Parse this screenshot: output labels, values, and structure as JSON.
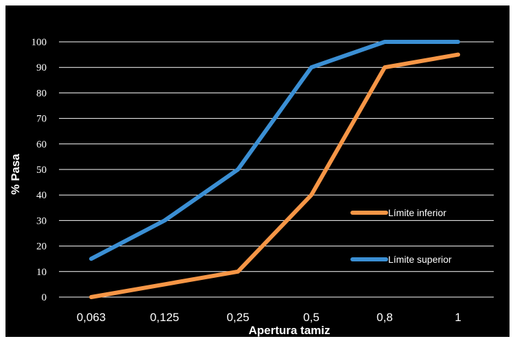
{
  "chart_data": {
    "type": "line",
    "title": "",
    "xlabel": "Apertura tamiz",
    "ylabel": "% Pasa",
    "categories": [
      "0,063",
      "0,125",
      "0,25",
      "0,5",
      "0,8",
      "1"
    ],
    "ylim": [
      0,
      100
    ],
    "yticks": [
      0,
      10,
      20,
      30,
      40,
      50,
      60,
      70,
      80,
      90,
      100
    ],
    "grid": true,
    "legend_position": "right",
    "background": "#000000",
    "series": [
      {
        "name": "Límite inferior",
        "color": "#f79646",
        "values": [
          0,
          5,
          10,
          40,
          90,
          95
        ]
      },
      {
        "name": "Límite superior",
        "color": "#3b8fd4",
        "values": [
          15,
          30,
          50,
          90,
          100,
          100
        ]
      }
    ]
  }
}
